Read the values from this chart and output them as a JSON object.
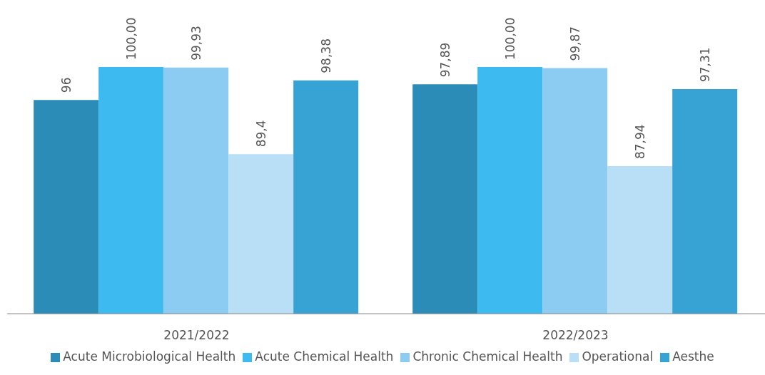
{
  "chart_data": {
    "type": "bar",
    "categories": [
      "2021/2022",
      "2022/2023"
    ],
    "series": [
      {
        "name": "Acute Microbiological Health",
        "color": "#2b8cb8",
        "values": [
          96,
          97.89
        ],
        "value_labels": [
          "96",
          "97,89"
        ]
      },
      {
        "name": "Acute Chemical Health",
        "color": "#3dbaf0",
        "values": [
          100,
          100
        ],
        "value_labels": [
          "100,00",
          "100,00"
        ]
      },
      {
        "name": "Chronic Chemical Health",
        "color": "#8ccbf2",
        "values": [
          99.93,
          99.87
        ],
        "value_labels": [
          "99,93",
          "99,87"
        ]
      },
      {
        "name": "Operational",
        "color": "#b9dff7",
        "values": [
          89.4,
          87.94
        ],
        "value_labels": [
          "89,4",
          "87,94"
        ]
      },
      {
        "name": "Aesthe",
        "color": "#37a2d4",
        "values": [
          98.38,
          97.31
        ],
        "value_labels": [
          "98,38",
          "97,31"
        ]
      }
    ],
    "ylim": [
      70,
      100
    ],
    "tick_labels": "x",
    "legend": "bottom"
  }
}
